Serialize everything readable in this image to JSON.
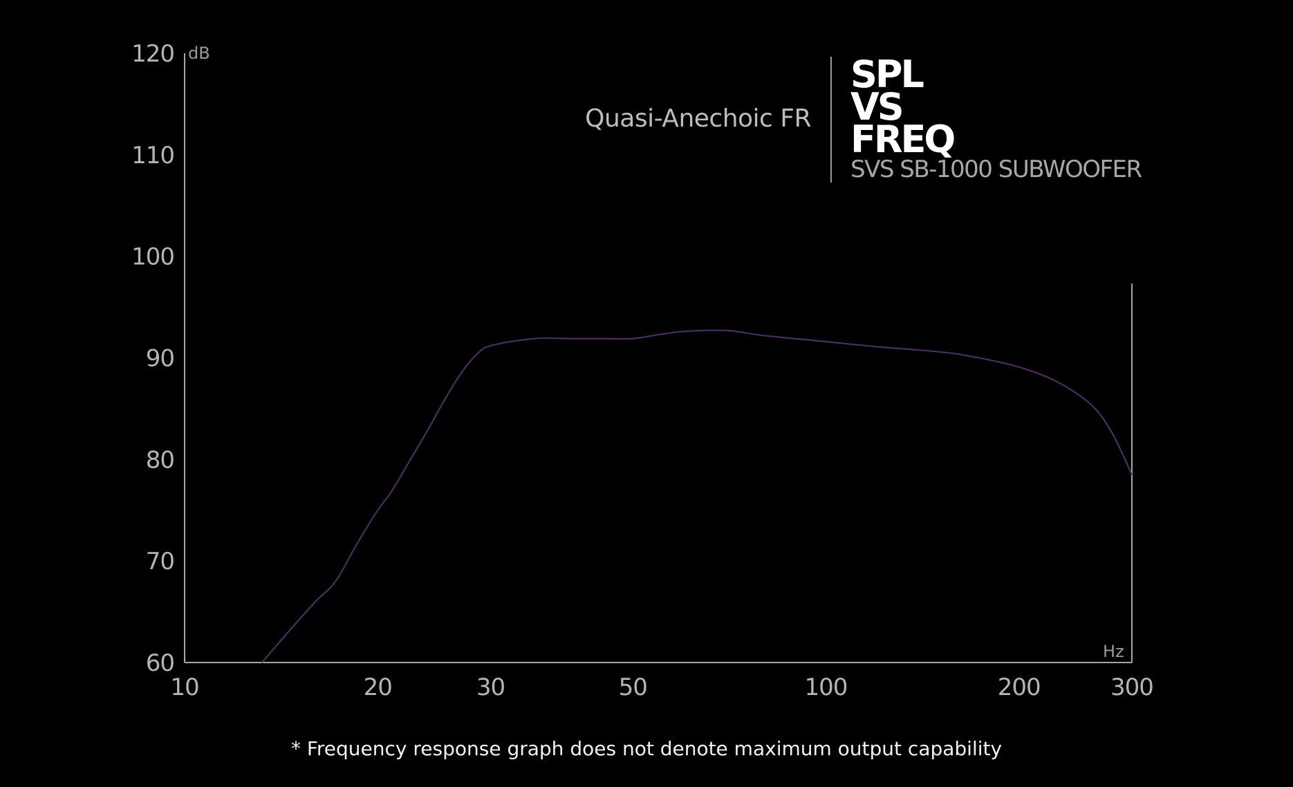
{
  "chart_data": {
    "type": "line",
    "subtitle": "Quasi-Anechoic FR",
    "title_lines": [
      "SPL",
      "VS",
      "FREQ"
    ],
    "model": "SVS SB-1000 SUBWOOFER",
    "ylabel": "dB",
    "xlabel": "Hz",
    "x_scale": "log",
    "xlim": [
      10,
      300
    ],
    "ylim": [
      60,
      120
    ],
    "x_ticks": [
      "10",
      "20",
      "30",
      "50",
      "100",
      "200",
      "300"
    ],
    "y_ticks": [
      "120",
      "110",
      "100",
      "90",
      "80",
      "70",
      "60"
    ],
    "grid": false,
    "line_color": "#4a2f5e",
    "series": [
      {
        "x": [
          13.2,
          14.5,
          16,
          17.2,
          18.5,
          20,
          21,
          22.5,
          24,
          25.5,
          27,
          28.5,
          30,
          35,
          40,
          45,
          50,
          55,
          60,
          70,
          80,
          100,
          120,
          150,
          170,
          200,
          230,
          260,
          280,
          300
        ],
        "y": [
          60,
          63,
          66,
          68,
          71.5,
          75,
          76.8,
          80,
          83,
          86,
          88.5,
          90.3,
          91.2,
          91.9,
          91.9,
          91.9,
          91.9,
          92.3,
          92.6,
          92.7,
          92.2,
          91.6,
          91.1,
          90.6,
          90.1,
          89.1,
          87.6,
          85.3,
          82.5,
          78.5
        ]
      }
    ],
    "footnote": "* Frequency response graph does not denote maximum output capability"
  }
}
